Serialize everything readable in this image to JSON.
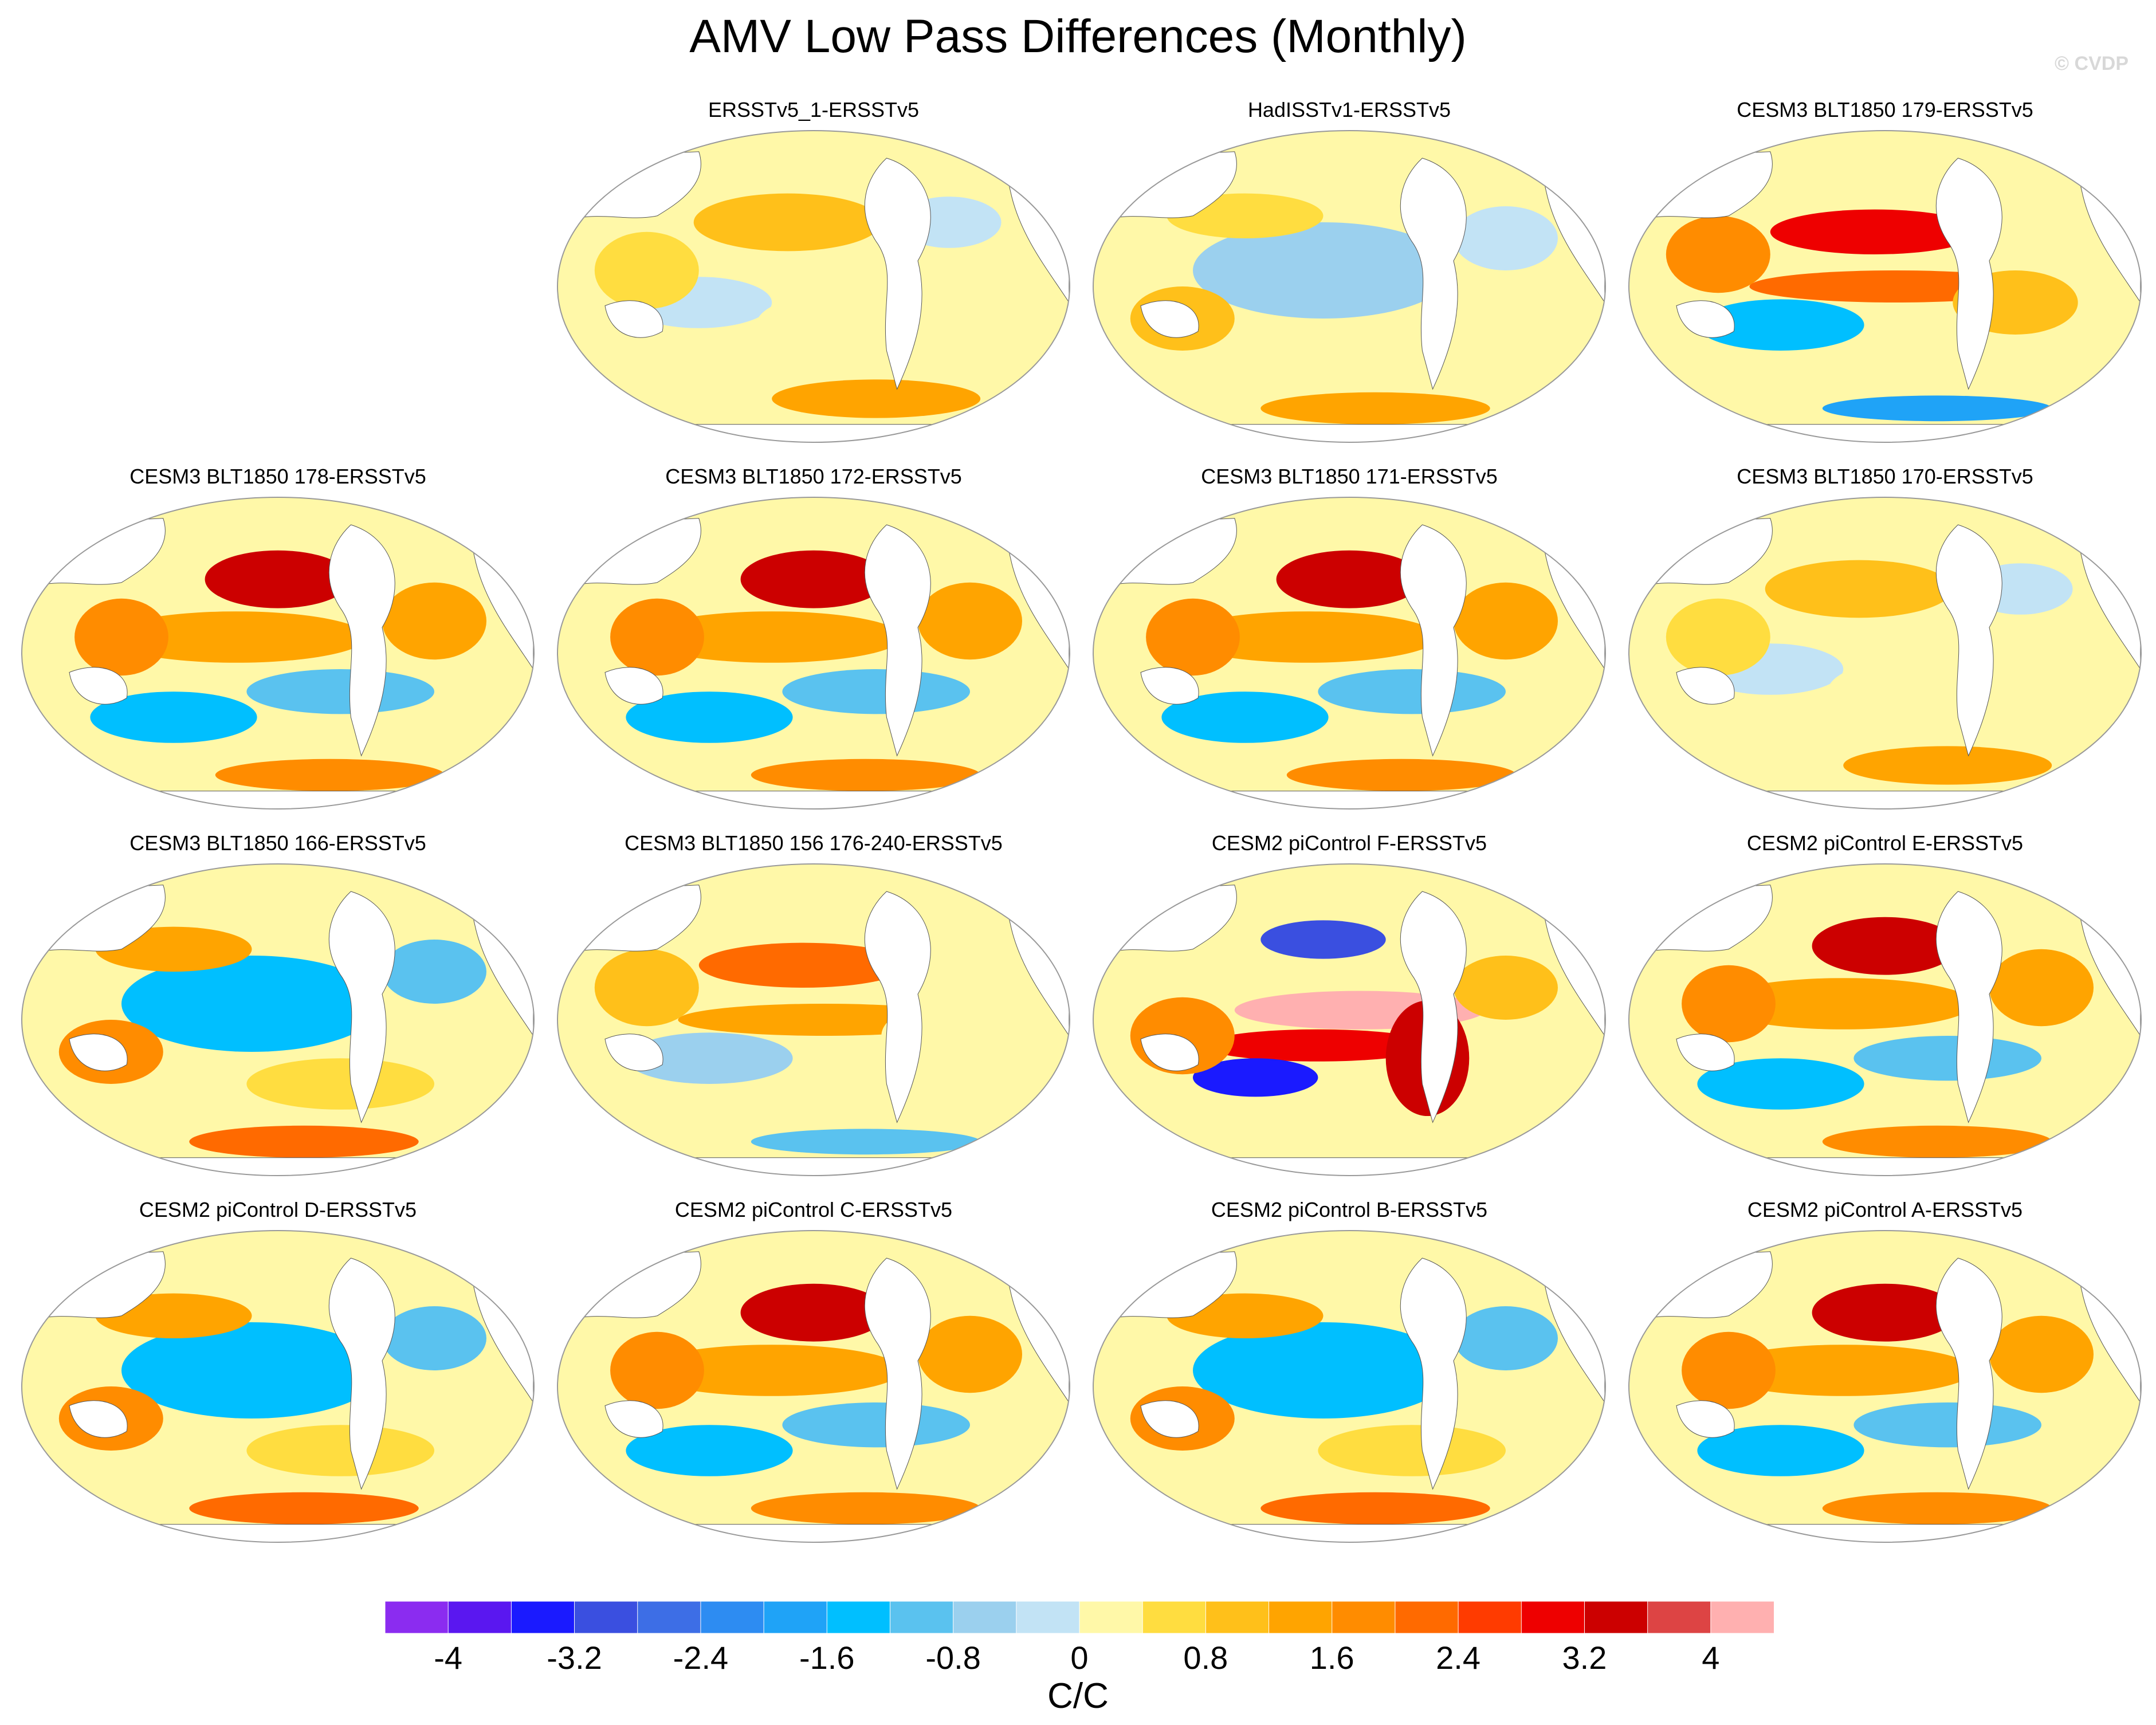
{
  "title": "AMV Low Pass Differences (Monthly)",
  "credit": "© CVDP",
  "panels": [
    {
      "label": "ERSSTv5_1-ERSSTv5",
      "pattern": "mixed",
      "intensity": 0.55
    },
    {
      "label": "HadISSTv1-ERSSTv5",
      "pattern": "cool-pacific",
      "intensity": 0.5
    },
    {
      "label": "CESM3 BLT1850 179-ERSSTv5",
      "pattern": "warm-band",
      "intensity": 0.75
    },
    {
      "label": "CESM3 BLT1850 178-ERSSTv5",
      "pattern": "warm-north",
      "intensity": 0.7
    },
    {
      "label": "CESM3 BLT1850 172-ERSSTv5",
      "pattern": "warm-north",
      "intensity": 0.6
    },
    {
      "label": "CESM3 BLT1850 171-ERSSTv5",
      "pattern": "warm-north",
      "intensity": 0.6
    },
    {
      "label": "CESM3 BLT1850 170-ERSSTv5",
      "pattern": "mixed",
      "intensity": 0.5
    },
    {
      "label": "CESM3 BLT1850 166-ERSSTv5",
      "pattern": "cool-pacific",
      "intensity": 0.85
    },
    {
      "label": "CESM3 BLT1850 156 176-240-ERSSTv5",
      "pattern": "warm-band",
      "intensity": 0.55
    },
    {
      "label": "CESM2 piControl F-ERSSTv5",
      "pattern": "strong-warm",
      "intensity": 1.0
    },
    {
      "label": "CESM2 piControl E-ERSSTv5",
      "pattern": "warm-north",
      "intensity": 0.8
    },
    {
      "label": "CESM2 piControl D-ERSSTv5",
      "pattern": "cool-pacific",
      "intensity": 0.7
    },
    {
      "label": "CESM2 piControl C-ERSSTv5",
      "pattern": "warm-north",
      "intensity": 0.75
    },
    {
      "label": "CESM2 piControl B-ERSSTv5",
      "pattern": "cool-pacific",
      "intensity": 0.7
    },
    {
      "label": "CESM2 piControl A-ERSSTv5",
      "pattern": "warm-north",
      "intensity": 0.8
    }
  ],
  "colorbar": {
    "colors": [
      "#8b2cf0",
      "#5a17f0",
      "#1a1aff",
      "#3a4fe0",
      "#3d6ee6",
      "#2d8cf2",
      "#1fa3f7",
      "#00bfff",
      "#5ac2ef",
      "#9bd0ee",
      "#c2e3f5",
      "#fff8a8",
      "#ffdd40",
      "#ffc01a",
      "#ffa400",
      "#ff8c00",
      "#ff6a00",
      "#ff3b00",
      "#ee0000",
      "#cc0000",
      "#dd4444",
      "#ffb0b0"
    ],
    "tick_labels": [
      "-4",
      "-3.2",
      "-2.4",
      "-1.6",
      "-0.8",
      "0",
      "0.8",
      "1.6",
      "2.4",
      "3.2",
      "4"
    ],
    "tick_values": [
      -4,
      -3.2,
      -2.4,
      -1.6,
      -0.8,
      0,
      0.8,
      1.6,
      2.4,
      3.2,
      4
    ],
    "range": [
      -4.4,
      4.4
    ],
    "units": "C/C"
  }
}
